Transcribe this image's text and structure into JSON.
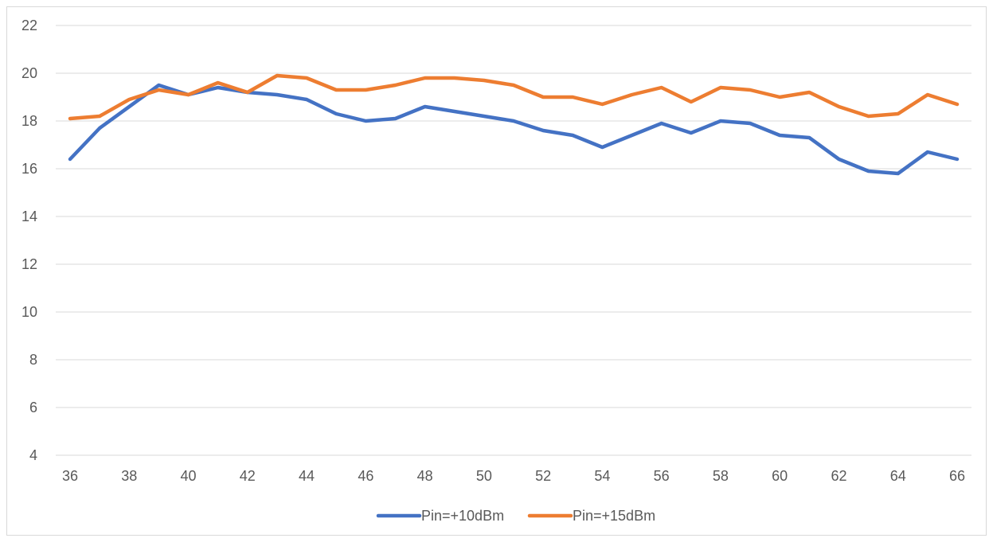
{
  "chart_data": {
    "type": "line",
    "title": "",
    "xlabel": "",
    "ylabel": "",
    "ylim": [
      4,
      22
    ],
    "yticks": [
      4,
      6,
      8,
      10,
      12,
      14,
      16,
      18,
      20,
      22
    ],
    "xlim": [
      36,
      66
    ],
    "xticks": [
      36,
      38,
      40,
      42,
      44,
      46,
      48,
      50,
      52,
      54,
      56,
      58,
      60,
      62,
      64,
      66
    ],
    "grid": "horizontal",
    "legend_position": "bottom-center",
    "x": [
      36,
      37,
      38,
      39,
      40,
      41,
      42,
      43,
      44,
      45,
      46,
      47,
      48,
      49,
      50,
      51,
      52,
      53,
      54,
      55,
      56,
      57,
      58,
      59,
      60,
      61,
      62,
      63,
      64,
      65,
      66
    ],
    "series": [
      {
        "name": "Pin=+10dBm",
        "color": "#4472c4",
        "values": [
          16.4,
          17.7,
          18.6,
          19.5,
          19.1,
          19.4,
          19.2,
          19.1,
          18.9,
          18.3,
          18.0,
          18.1,
          18.6,
          18.4,
          18.2,
          18.0,
          17.6,
          17.4,
          16.9,
          17.4,
          17.9,
          17.5,
          18.0,
          17.9,
          17.4,
          17.3,
          16.4,
          15.9,
          15.8,
          16.7,
          16.4
        ]
      },
      {
        "name": "Pin=+15dBm",
        "color": "#ed7d31",
        "values": [
          18.1,
          18.2,
          18.9,
          19.3,
          19.1,
          19.6,
          19.2,
          19.9,
          19.8,
          19.3,
          19.3,
          19.5,
          19.8,
          19.8,
          19.7,
          19.5,
          19.0,
          19.0,
          18.7,
          19.1,
          19.4,
          18.8,
          19.4,
          19.3,
          19.0,
          19.2,
          18.6,
          18.2,
          18.3,
          19.1,
          18.7
        ]
      }
    ]
  }
}
